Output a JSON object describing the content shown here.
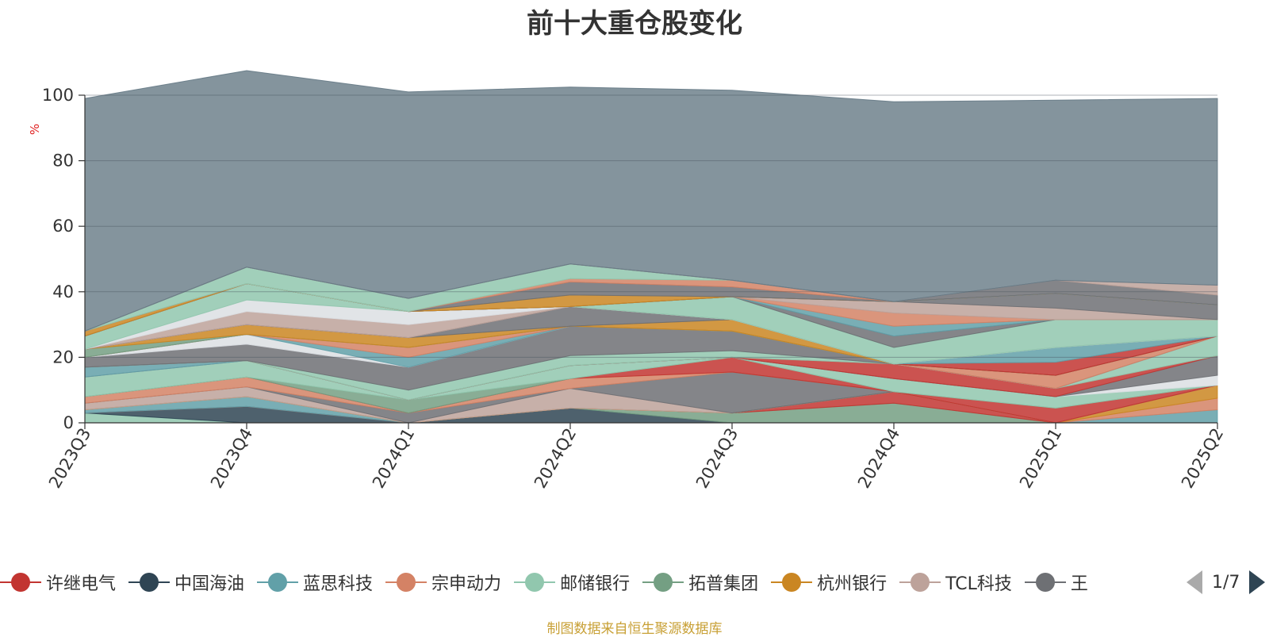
{
  "title": "前十大重仓股变化",
  "footer": "制图数据来自恒生聚源数据库",
  "pager": {
    "text": "1/7"
  },
  "legend": [
    {
      "name": "许继电气",
      "color": "#c23531"
    },
    {
      "name": "中国海油",
      "color": "#2f4554"
    },
    {
      "name": "蓝思科技",
      "color": "#61a0a8"
    },
    {
      "name": "宗申动力",
      "color": "#d48265"
    },
    {
      "name": "邮储银行",
      "color": "#91c7ae"
    },
    {
      "name": "拓普集团",
      "color": "#749f83"
    },
    {
      "name": "杭州银行",
      "color": "#ca8622"
    },
    {
      "name": "TCL科技",
      "color": "#bda29a"
    },
    {
      "name": "王",
      "color": "#6e7074"
    }
  ],
  "chart_data": {
    "type": "area",
    "stacked": true,
    "title": "前十大重仓股变化",
    "ylabel": "%",
    "ylim": [
      0,
      100
    ],
    "yticks": [
      0,
      20,
      40,
      60,
      80,
      100
    ],
    "categories": [
      "2023Q3",
      "2023Q4",
      "2024Q1",
      "2024Q2",
      "2024Q3",
      "2024Q4",
      "2025Q1",
      "2025Q2"
    ],
    "series": [
      {
        "color": "#91c7ae",
        "values": [
          3.0,
          0.0,
          0.0,
          0.0,
          0.0,
          0.0,
          0.0,
          0.0
        ]
      },
      {
        "color": "#2f4554",
        "values": [
          0.0,
          5.0,
          0.0,
          4.5,
          0.0,
          0.0,
          0.0,
          0.0
        ]
      },
      {
        "color": "#749f83",
        "values": [
          0.0,
          0.0,
          0.0,
          0.0,
          3.0,
          6.0,
          0.0,
          0.0
        ]
      },
      {
        "color": "#c23531",
        "values": [
          0.0,
          0.0,
          0.0,
          0.0,
          0.0,
          3.5,
          0.0,
          0.0
        ]
      },
      {
        "color": "#61a0a8",
        "values": [
          1.0,
          3.0,
          0.0,
          0.0,
          0.0,
          0.0,
          0.0,
          4.0
        ]
      },
      {
        "color": "#d48265",
        "values": [
          0.0,
          0.0,
          0.0,
          0.0,
          0.0,
          0.0,
          0.0,
          3.5
        ]
      },
      {
        "color": "#ca8622",
        "values": [
          0.0,
          0.0,
          0.0,
          0.0,
          0.0,
          0.0,
          0.0,
          4.0
        ]
      },
      {
        "color": "#bda29a",
        "values": [
          2.0,
          3.0,
          0.0,
          6.0,
          0.0,
          0.0,
          0.0,
          0.0
        ]
      },
      {
        "color": "#6e7074",
        "values": [
          0.0,
          0.0,
          3.0,
          0.0,
          12.5,
          0.0,
          0.0,
          0.0
        ]
      },
      {
        "color": "#d48265",
        "values": [
          2.0,
          3.0,
          0.0,
          3.0,
          0.0,
          0.0,
          0.0,
          0.0
        ]
      },
      {
        "color": "#c23531",
        "values": [
          0.0,
          0.0,
          0.0,
          0.0,
          4.5,
          0.0,
          4.5,
          0.0
        ]
      },
      {
        "color": "#749f83",
        "values": [
          0.0,
          0.0,
          4.0,
          0.0,
          0.0,
          0.0,
          0.0,
          0.0
        ]
      },
      {
        "color": "#91c7ae",
        "values": [
          6.0,
          5.0,
          0.0,
          4.0,
          0.0,
          4.0,
          3.5,
          0.0
        ]
      },
      {
        "color": "#dcdfe3",
        "values": [
          0.0,
          0.0,
          0.0,
          0.0,
          0.0,
          0.0,
          0.0,
          3.0
        ]
      },
      {
        "color": "#6e7074",
        "values": [
          0.0,
          0.0,
          0.0,
          0.0,
          0.0,
          0.0,
          0.0,
          6.0
        ]
      },
      {
        "color": "#61a0a8",
        "values": [
          3.0,
          0.0,
          0.0,
          0.0,
          0.0,
          0.0,
          0.0,
          0.0
        ]
      },
      {
        "color": "#c23531",
        "values": [
          0.0,
          0.0,
          0.0,
          0.0,
          0.0,
          4.5,
          2.5,
          0.0
        ]
      },
      {
        "color": "#91c7ae",
        "values": [
          0.0,
          0.0,
          3.0,
          3.0,
          2.0,
          0.0,
          0.0,
          6.0
        ]
      },
      {
        "color": "#6e7074",
        "values": [
          3.0,
          5.0,
          7.0,
          9.0,
          6.0,
          0.0,
          0.0,
          0.0
        ]
      },
      {
        "color": "#dcdfe3",
        "values": [
          0.0,
          3.0,
          0.0,
          0.0,
          0.0,
          0.0,
          0.0,
          0.0
        ]
      },
      {
        "color": "#61a0a8",
        "values": [
          0.0,
          0.0,
          3.0,
          0.0,
          0.0,
          0.0,
          0.0,
          0.0
        ]
      },
      {
        "color": "#d48265",
        "values": [
          0.0,
          0.0,
          3.0,
          0.0,
          0.0,
          0.0,
          4.0,
          0.0
        ]
      },
      {
        "color": "#749f83",
        "values": [
          2.5,
          0.0,
          0.0,
          0.0,
          0.0,
          0.0,
          0.0,
          0.0
        ]
      },
      {
        "color": "#ca8622",
        "values": [
          0.0,
          3.0,
          3.0,
          0.0,
          3.5,
          0.0,
          0.0,
          0.0
        ]
      },
      {
        "color": "#6e7074",
        "values": [
          0.0,
          0.0,
          0.0,
          6.0,
          0.0,
          0.0,
          0.0,
          0.0
        ]
      },
      {
        "color": "#c23531",
        "values": [
          0.0,
          0.0,
          0.0,
          0.0,
          0.0,
          0.0,
          4.0,
          0.0
        ]
      },
      {
        "color": "#61a0a8",
        "values": [
          0.0,
          0.0,
          0.0,
          0.0,
          0.0,
          0.0,
          4.5,
          0.0
        ]
      },
      {
        "color": "#bda29a",
        "values": [
          0.0,
          4.0,
          4.0,
          0.0,
          0.0,
          0.0,
          0.0,
          0.0
        ]
      },
      {
        "color": "#dcdfe3",
        "values": [
          0.0,
          3.5,
          4.0,
          0.0,
          0.0,
          0.0,
          0.0,
          0.0
        ]
      },
      {
        "color": "#91c7ae",
        "values": [
          4.0,
          5.0,
          0.0,
          0.0,
          7.0,
          5.0,
          8.5,
          5.0
        ]
      },
      {
        "color": "#6e7074",
        "values": [
          0.0,
          0.0,
          0.0,
          0.0,
          0.0,
          3.5,
          0.0,
          0.0
        ]
      },
      {
        "color": "#61a0a8",
        "values": [
          0.0,
          0.0,
          0.0,
          0.0,
          0.0,
          3.0,
          0.0,
          0.0
        ]
      },
      {
        "color": "#d48265",
        "values": [
          0.0,
          0.0,
          0.0,
          0.0,
          0.0,
          4.0,
          0.0,
          0.0
        ]
      },
      {
        "color": "#bda29a",
        "values": [
          0.0,
          0.0,
          0.0,
          0.0,
          0.0,
          3.5,
          3.5,
          0.0
        ]
      },
      {
        "color": "#6e7074",
        "values": [
          0.0,
          0.0,
          0.0,
          0.0,
          0.0,
          0.0,
          4.5,
          4.5
        ]
      },
      {
        "color": "#ca8622",
        "values": [
          1.5,
          0.0,
          0.0,
          3.5,
          0.0,
          0.0,
          0.0,
          0.0
        ]
      },
      {
        "color": "#6e7074",
        "values": [
          0.0,
          0.0,
          0.0,
          4.0,
          3.0,
          0.0,
          0.0,
          0.0
        ]
      },
      {
        "color": "#d48265",
        "values": [
          0.0,
          0.0,
          0.0,
          1.0,
          2.0,
          0.0,
          0.0,
          0.0
        ]
      },
      {
        "color": "#91c7ae",
        "values": [
          0.0,
          5.0,
          4.0,
          4.5,
          0.0,
          0.0,
          0.0,
          0.0
        ]
      },
      {
        "color": "#6e7074",
        "values": [
          0.0,
          0.0,
          0.0,
          0.0,
          0.0,
          0.0,
          4.0,
          3.0
        ]
      },
      {
        "color": "#bda29a",
        "values": [
          0.0,
          0.0,
          0.0,
          0.0,
          0.0,
          0.0,
          0.0,
          3.0
        ]
      },
      {
        "color": "#657985",
        "values": [
          71.0,
          60.0,
          63.0,
          54.0,
          58.0,
          61.0,
          55.0,
          57.0
        ]
      }
    ]
  }
}
